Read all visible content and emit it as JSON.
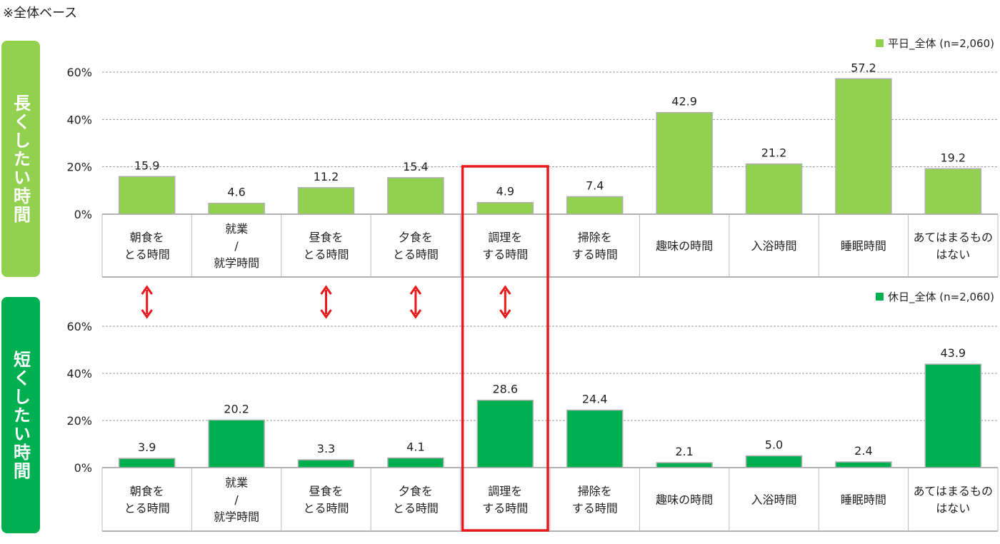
{
  "note": "※全体ベース",
  "chart_data": [
    {
      "type": "bar",
      "name": "weekday",
      "side_label": "長くしたい時間",
      "legend": "平日_全体 (n=2,060)",
      "color": "#92d050",
      "categories": [
        [
          "朝食を",
          "とる時間"
        ],
        [
          "就業",
          "/",
          "就学時間"
        ],
        [
          "昼食を",
          "とる時間"
        ],
        [
          "夕食を",
          "とる時間"
        ],
        [
          "調理を",
          "する時間"
        ],
        [
          "掃除を",
          "する時間"
        ],
        [
          "趣味の時間"
        ],
        [
          "入浴時間"
        ],
        [
          "睡眠時間"
        ],
        [
          "あてはまるもの",
          "はない"
        ]
      ],
      "values": [
        15.9,
        4.6,
        11.2,
        15.4,
        4.9,
        7.4,
        42.9,
        21.2,
        57.2,
        19.2
      ],
      "value_labels": [
        "15.9",
        "4.6",
        "11.2",
        "15.4",
        "4.9",
        "7.4",
        "42.9",
        "21.2",
        "57.2",
        "19.2"
      ],
      "ylim": [
        0,
        60
      ],
      "yticks": [
        "0%",
        "20%",
        "40%",
        "60%"
      ]
    },
    {
      "type": "bar",
      "name": "holiday",
      "side_label": "短くしたい時間",
      "legend": "休日_全体 (n=2,060)",
      "color": "#00b050",
      "categories": [
        [
          "朝食を",
          "とる時間"
        ],
        [
          "就業",
          "/",
          "就学時間"
        ],
        [
          "昼食を",
          "とる時間"
        ],
        [
          "夕食を",
          "とる時間"
        ],
        [
          "調理を",
          "する時間"
        ],
        [
          "掃除を",
          "する時間"
        ],
        [
          "趣味の時間"
        ],
        [
          "入浴時間"
        ],
        [
          "睡眠時間"
        ],
        [
          "あてはまるもの",
          "はない"
        ]
      ],
      "values": [
        3.9,
        20.2,
        3.3,
        4.1,
        28.6,
        24.4,
        2.1,
        5.0,
        2.4,
        43.9
      ],
      "value_labels": [
        "3.9",
        "20.2",
        "3.3",
        "4.1",
        "28.6",
        "24.4",
        "2.1",
        "5.0",
        "2.4",
        "43.9"
      ],
      "ylim": [
        0,
        60
      ],
      "yticks": [
        "0%",
        "20%",
        "40%",
        "60%"
      ]
    }
  ],
  "arrow_columns": [
    0,
    2,
    3,
    4
  ],
  "highlight_column": 4,
  "colors": {
    "arrow": "#e8191b",
    "highlight": "#e8191b",
    "grid": "#999999",
    "bar_border": "#b0b0b0"
  }
}
